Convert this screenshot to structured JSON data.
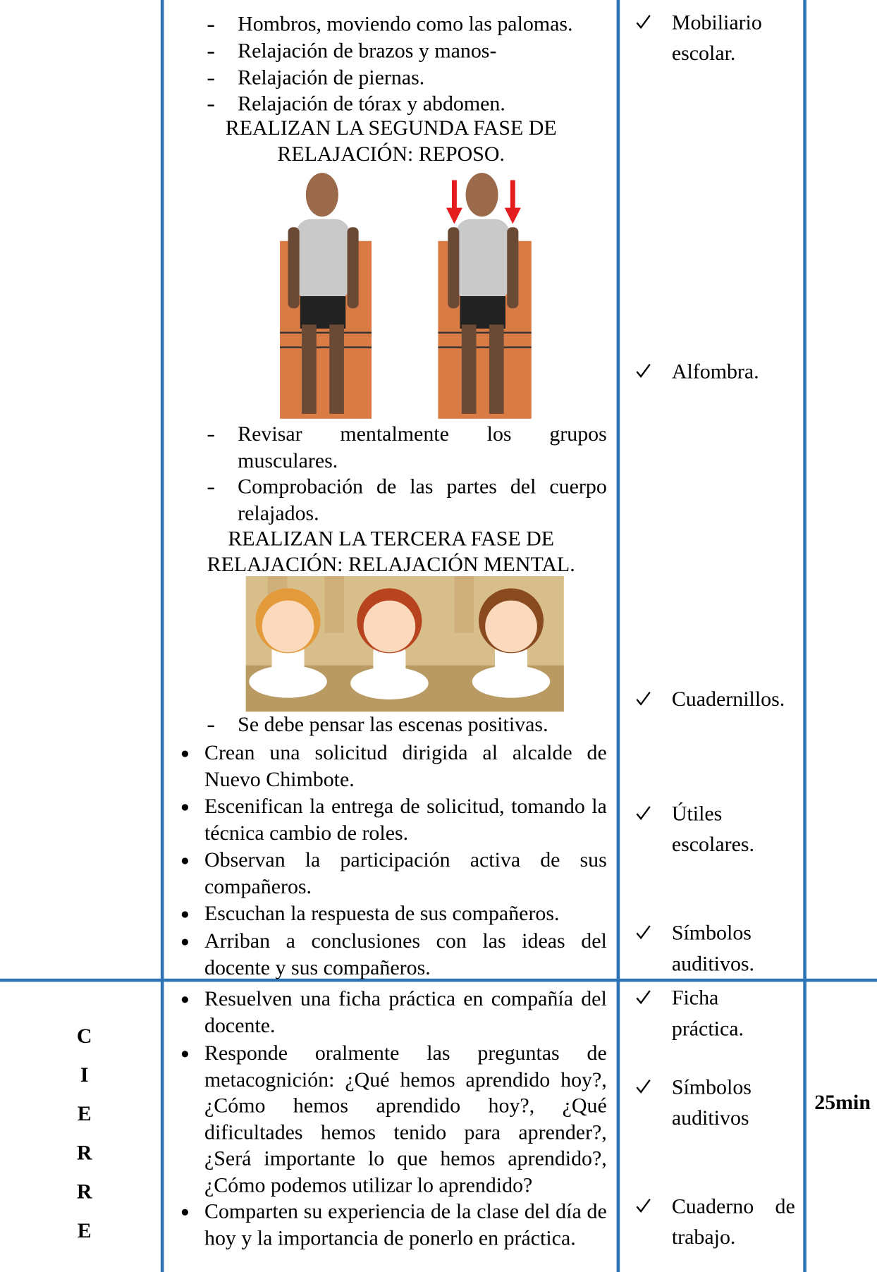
{
  "rows": [
    {
      "activities": {
        "steps_1": [
          "Hombros, moviendo como las palomas.",
          "Relajación de brazos y manos-",
          "Relajación de piernas.",
          "Relajación de tórax y abdomen."
        ],
        "phase_2": "REALIZAN LA SEGUNDA FASE DE RELAJACIÓN: REPOSO.",
        "steps_2": [
          "Revisar mentalmente los grupos musculares.",
          "Comprobación de las partes del cuerpo relajados."
        ],
        "phase_3": "REALIZAN LA TERCERA FASE DE RELAJACIÓN: RELAJACIÓN MENTAL.",
        "steps_3": [
          "Se debe pensar las escenas positivas."
        ],
        "bullets": [
          "Crean una solicitud dirigida al alcalde de Nuevo Chimbote.",
          "Escenifican la entrega de solicitud, tomando la técnica cambio de roles.",
          "Observan la participación activa de sus compañeros.",
          "Escuchan la respuesta de sus compañeros.",
          "Arriban a conclusiones con las ideas del docente y sus compañeros."
        ]
      },
      "resources": [
        "Mobiliario escolar.",
        "Alfombra.",
        "Cuadernillos.",
        "Útiles escolares.",
        "Símbolos auditivos."
      ]
    },
    {
      "stage": [
        "C",
        "I",
        "E",
        "R",
        "R",
        "E"
      ],
      "activities": {
        "bullets": [
          "Resuelven una ficha práctica en compañía del docente.",
          "Responde oralmente las preguntas de metacognición: ¿Qué hemos aprendido hoy?, ¿Cómo hemos aprendido hoy?, ¿Qué dificultades hemos tenido para aprender?, ¿Será importante lo que hemos aprendido?, ¿Cómo podemos utilizar lo aprendido?",
          "Comparten su experiencia de la clase del día de hoy y la importancia de ponerlo en práctica."
        ]
      },
      "resources": [
        "Ficha práctica.",
        "Símbolos auditivos",
        "Cuaderno de trabajo."
      ],
      "time": "25min"
    }
  ]
}
